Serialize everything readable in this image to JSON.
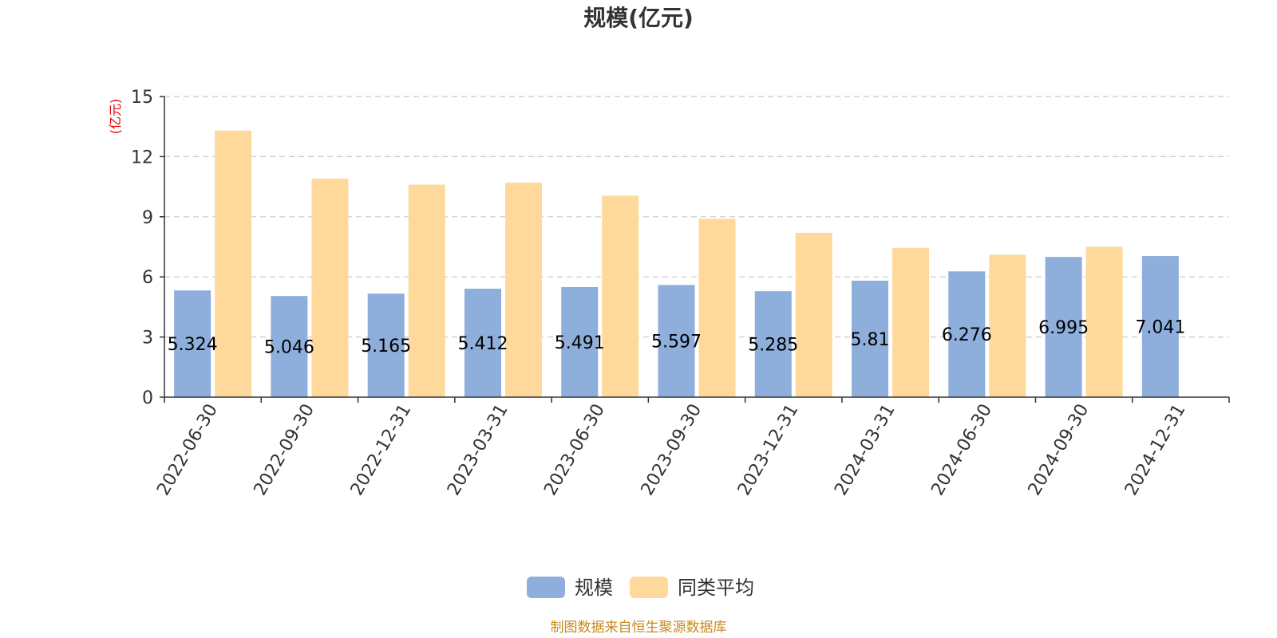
{
  "chart_data": {
    "type": "bar",
    "title": "规模(亿元)",
    "ylabel": "(亿元)",
    "xlabel": "",
    "categories": [
      "2022-06-30",
      "2022-09-30",
      "2022-12-31",
      "2023-03-31",
      "2023-06-30",
      "2023-09-30",
      "2023-12-31",
      "2024-03-31",
      "2024-06-30",
      "2024-09-30",
      "2024-12-31"
    ],
    "ylim": [
      0,
      15
    ],
    "yticks": [
      0,
      3,
      6,
      9,
      12,
      15
    ],
    "grid": true,
    "legend_position": "bottom-center",
    "series": [
      {
        "name": "规模",
        "color": "#8eaedb",
        "values": [
          5.324,
          5.046,
          5.165,
          5.412,
          5.491,
          5.597,
          5.285,
          5.81,
          6.276,
          6.995,
          7.041
        ],
        "labels": [
          "5.324",
          "5.046",
          "5.165",
          "5.412",
          "5.491",
          "5.597",
          "5.285",
          "5.81",
          "6.276",
          "6.995",
          "7.041"
        ]
      },
      {
        "name": "同类平均",
        "color": "#fed99b",
        "values": [
          13.3,
          10.9,
          10.6,
          10.7,
          10.05,
          8.9,
          8.2,
          7.45,
          7.1,
          7.5,
          null
        ]
      }
    ],
    "source": "制图数据来自恒生聚源数据库"
  }
}
